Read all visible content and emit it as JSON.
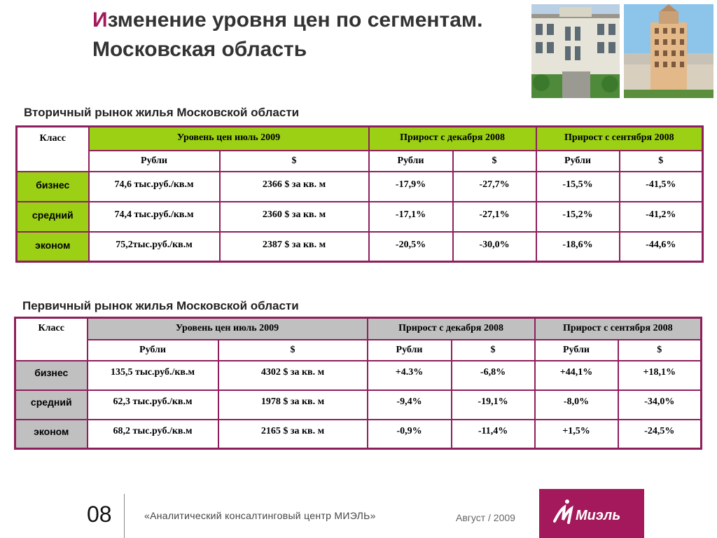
{
  "title": {
    "first_letter": "И",
    "rest": "зменение уровня цен по сегментам. Московская область"
  },
  "colors": {
    "accent": "#a3195b",
    "table_border": "#8e1f5c",
    "green_header": "#9bd014",
    "gray_header": "#c0c0c0"
  },
  "photos": [
    {
      "icon": "building-photo-icon"
    },
    {
      "icon": "tower-photo-icon"
    }
  ],
  "secondary": {
    "heading": "Вторичный рынок жилья Московской области",
    "header": {
      "klass": "Класс",
      "level": "Уровень цен июль  2009",
      "growth_dec": "Прирост с декабря 2008",
      "growth_sep": "Прирост с сентября 2008"
    },
    "sub": [
      "Рубли",
      "$",
      "Рубли",
      "$",
      "Рубли",
      "$"
    ],
    "rows": [
      {
        "label": "бизнес",
        "cells": [
          "74,6 тыс.руб./кв.м",
          "2366 $ за кв. м",
          "-17,9%",
          "-27,7%",
          "-15,5%",
          "-41,5%"
        ]
      },
      {
        "label": "средний",
        "cells": [
          "74,4 тыс.руб./кв.м",
          "2360 $ за кв. м",
          "-17,1%",
          "-27,1%",
          "-15,2%",
          "-41,2%"
        ]
      },
      {
        "label": "эконом",
        "cells": [
          "75,2тыс.руб./кв.м",
          "2387 $ за кв. м",
          "-20,5%",
          "-30,0%",
          "-18,6%",
          "-44,6%"
        ]
      }
    ]
  },
  "primary": {
    "heading": "Первичный рынок жилья Московской области",
    "header": {
      "klass": "Класс",
      "level": "Уровень цен июль  2009",
      "growth_dec": "Прирост с декабря 2008",
      "growth_sep": "Прирост с сентября 2008"
    },
    "sub": [
      "Рубли",
      "$",
      "Рубли",
      "$",
      "Рубли",
      "$"
    ],
    "rows": [
      {
        "label": "бизнес",
        "cells": [
          "135,5 тыс.руб./кв.м",
          "4302 $ за кв. м",
          "+4.3%",
          "-6,8%",
          "+44,1%",
          "+18,1%"
        ]
      },
      {
        "label": "средний",
        "cells": [
          "62,3 тыс.руб./кв.м",
          "1978 $ за кв. м",
          "-9,4%",
          "-19,1%",
          "-8,0%",
          "-34,0%"
        ]
      },
      {
        "label": "эконом",
        "cells": [
          "68,2 тыс.руб./кв.м",
          "2165 $ за кв. м",
          "-0,9%",
          "-11,4%",
          "+1,5%",
          "-24,5%"
        ]
      }
    ]
  },
  "footer": {
    "page_number": "08",
    "org": "«Аналитический консалтинговый центр МИЭЛЬ»",
    "date": "Август / 2009",
    "logo_text": "Миэль"
  }
}
